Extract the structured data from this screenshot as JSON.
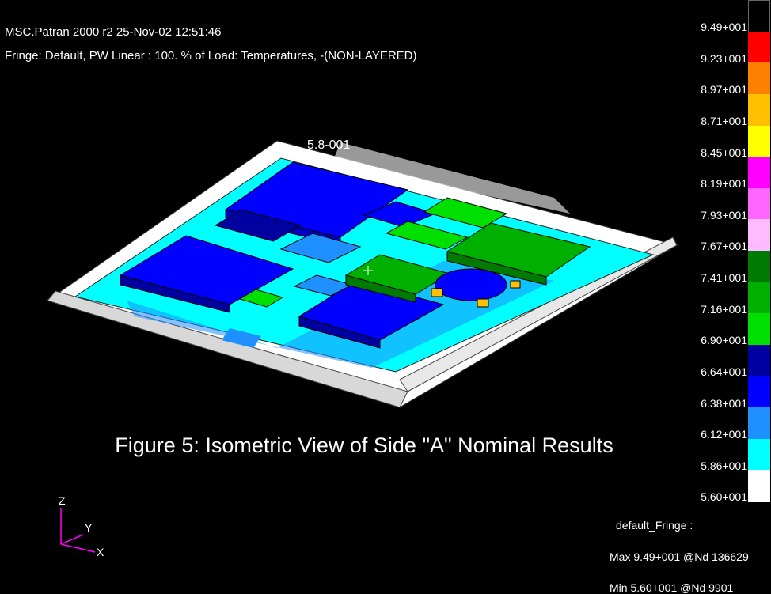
{
  "header": {
    "line1": "MSC.Patran 2000 r2 25-Nov-02 12:51:46",
    "line2": "Fringe: Default, PW Linear : 100. % of Load: Temperatures, -(NON-LAYERED)"
  },
  "caption": "Figure 5: Isometric View of Side \"A\" Nominal Results",
  "model_label": "5.8-001",
  "legend": {
    "ticks": [
      "9.49+001",
      "9.23+001",
      "8.97+001",
      "8.71+001",
      "8.45+001",
      "8.19+001",
      "7.93+001",
      "7.67+001",
      "7.41+001",
      "7.16+001",
      "6.90+001",
      "6.64+001",
      "6.38+001",
      "6.12+001",
      "5.86+001",
      "5.60+001"
    ],
    "colors": [
      "#000000",
      "#ff0000",
      "#ff8000",
      "#ffc000",
      "#ffff00",
      "#ff00ff",
      "#ff66ff",
      "#ffbbff",
      "#007a00",
      "#00b000",
      "#00e000",
      "#0000a0",
      "#0000ff",
      "#1e90ff",
      "#00ffff",
      "#ffffff"
    ]
  },
  "info": {
    "title": "default_Fringe :",
    "max": "Max 9.49+001 @Nd 136629",
    "min": "Min 5.60+001 @Nd 9901"
  },
  "axes": {
    "z": "Z",
    "y": "Y",
    "x": "X"
  }
}
